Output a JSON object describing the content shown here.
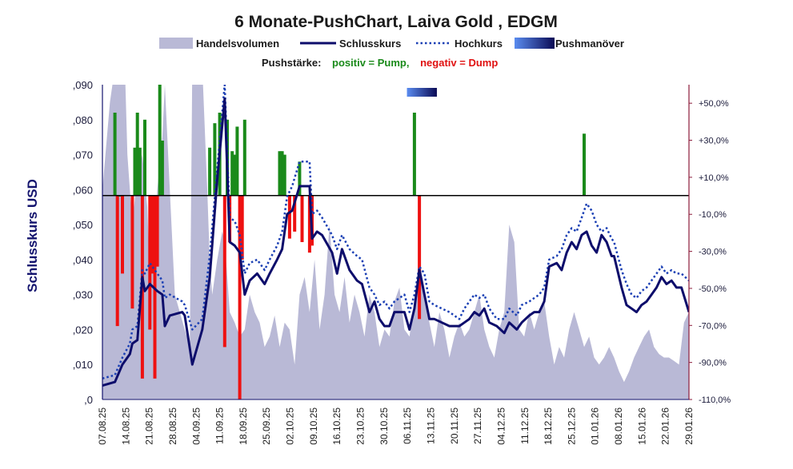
{
  "chart_data": {
    "type": "line",
    "title": "6 Monate-PushChart, Laiva Gold , EDGM",
    "ylabel": "Schlusskurs USD",
    "ylim": [
      0,
      0.09
    ],
    "y2lim": [
      -110,
      60
    ],
    "legend": {
      "volume": "Handelsvolumen",
      "close": "Schlusskurs",
      "high": "Hochkurs",
      "push": "Pushmanöver"
    },
    "pushstrength": {
      "label": "Pushstärke:",
      "positive": "positiv = Pump,",
      "negative": "negativ = Dump"
    },
    "y_ticks": [
      ",0",
      ",010",
      ",020",
      ",030",
      ",040",
      ",050",
      ",060",
      ",070",
      ",080",
      ",090"
    ],
    "y2_ticks": [
      "-110,0%",
      "-90,0%",
      "-70,0%",
      "-50,0%",
      "-30,0%",
      "-10,0%",
      "+10,0%",
      "+30,0%",
      "+50,0%"
    ],
    "y2_values": [
      -110,
      -90,
      -70,
      -50,
      -30,
      -10,
      10,
      30,
      50
    ],
    "x_labels": [
      "07.08.25",
      "14.08.25",
      "21.08.25",
      "28.08.25",
      "04.09.25",
      "11.09.25",
      "18.09.25",
      "25.09.25",
      "02.10.25",
      "09.10.25",
      "16.10.25",
      "23.10.25",
      "30.10.25",
      "06.11.25",
      "13.11.25",
      "20.11.25",
      "27.11.25",
      "04.12.25",
      "11.12.25",
      "18.12.25",
      "25.12.25",
      "01.01.26",
      "08.01.26",
      "15.01.26",
      "22.01.26",
      "29.01.26"
    ],
    "x_start": 0,
    "x_end": 175,
    "push_zero": 0.0583,
    "push_marker": {
      "from": 122,
      "to": 134
    },
    "close": [
      [
        0,
        0.004
      ],
      [
        5,
        0.005
      ],
      [
        8,
        0.01
      ],
      [
        11,
        0.013
      ],
      [
        12,
        0.016
      ],
      [
        14,
        0.017
      ],
      [
        16,
        0.035
      ],
      [
        17,
        0.031
      ],
      [
        19,
        0.033
      ],
      [
        22,
        0.031
      ],
      [
        24,
        0.03
      ],
      [
        25,
        0.021
      ],
      [
        27,
        0.024
      ],
      [
        32,
        0.025
      ],
      [
        33,
        0.024
      ],
      [
        36,
        0.01
      ],
      [
        40,
        0.02
      ],
      [
        43,
        0.035
      ],
      [
        46,
        0.063
      ],
      [
        49,
        0.086
      ],
      [
        51,
        0.045
      ],
      [
        53,
        0.044
      ],
      [
        55,
        0.042
      ],
      [
        57,
        0.03
      ],
      [
        59,
        0.034
      ],
      [
        62,
        0.036
      ],
      [
        65,
        0.033
      ],
      [
        67,
        0.036
      ],
      [
        70,
        0.04
      ],
      [
        72,
        0.043
      ],
      [
        74,
        0.053
      ],
      [
        76,
        0.054
      ],
      [
        79,
        0.061
      ],
      [
        83,
        0.061
      ],
      [
        84,
        0.046
      ],
      [
        86,
        0.048
      ],
      [
        88,
        0.047
      ],
      [
        92,
        0.042
      ],
      [
        94,
        0.036
      ],
      [
        96,
        0.043
      ],
      [
        99,
        0.037
      ],
      [
        102,
        0.034
      ],
      [
        104,
        0.033
      ],
      [
        107,
        0.025
      ],
      [
        109,
        0.028
      ],
      [
        111,
        0.023
      ],
      [
        113,
        0.021
      ],
      [
        115,
        0.021
      ],
      [
        117,
        0.025
      ],
      [
        121,
        0.025
      ],
      [
        123,
        0.02
      ],
      [
        125,
        0.026
      ],
      [
        127,
        0.037
      ],
      [
        129,
        0.03
      ],
      [
        131,
        0.023
      ],
      [
        133,
        0.023
      ],
      [
        136,
        0.022
      ],
      [
        139,
        0.021
      ],
      [
        143,
        0.021
      ],
      [
        145,
        0.022
      ],
      [
        147,
        0.023
      ],
      [
        149,
        0.025
      ],
      [
        151,
        0.024
      ],
      [
        153,
        0.026
      ],
      [
        155,
        0.022
      ],
      [
        158,
        0.021
      ],
      [
        161,
        0.019
      ],
      [
        163,
        0.022
      ],
      [
        166,
        0.02
      ],
      [
        168,
        0.022
      ],
      [
        171,
        0.024
      ],
      [
        173,
        0.025
      ],
      [
        175,
        0.025
      ],
      [
        177,
        0.028
      ],
      [
        179,
        0.038
      ],
      [
        182,
        0.039
      ],
      [
        184,
        0.037
      ],
      [
        186,
        0.042
      ],
      [
        188,
        0.045
      ],
      [
        190,
        0.043
      ],
      [
        192,
        0.047
      ],
      [
        194,
        0.048
      ],
      [
        196,
        0.044
      ],
      [
        198,
        0.042
      ],
      [
        200,
        0.047
      ],
      [
        202,
        0.045
      ],
      [
        204,
        0.041
      ],
      [
        205,
        0.041
      ],
      [
        208,
        0.032
      ],
      [
        210,
        0.027
      ],
      [
        212,
        0.026
      ],
      [
        214,
        0.025
      ],
      [
        216,
        0.027
      ],
      [
        218,
        0.028
      ],
      [
        220,
        0.03
      ],
      [
        222,
        0.032
      ],
      [
        224,
        0.035
      ],
      [
        226,
        0.033
      ],
      [
        228,
        0.034
      ],
      [
        230,
        0.032
      ],
      [
        232,
        0.032
      ],
      [
        235,
        0.025
      ]
    ],
    "high": [
      [
        0,
        0.006
      ],
      [
        5,
        0.007
      ],
      [
        8,
        0.012
      ],
      [
        11,
        0.016
      ],
      [
        12,
        0.02
      ],
      [
        14,
        0.021
      ],
      [
        16,
        0.037
      ],
      [
        17,
        0.036
      ],
      [
        19,
        0.039
      ],
      [
        22,
        0.036
      ],
      [
        24,
        0.034
      ],
      [
        25,
        0.029
      ],
      [
        27,
        0.03
      ],
      [
        32,
        0.028
      ],
      [
        33,
        0.027
      ],
      [
        36,
        0.02
      ],
      [
        40,
        0.023
      ],
      [
        43,
        0.041
      ],
      [
        46,
        0.066
      ],
      [
        49,
        0.09
      ],
      [
        51,
        0.052
      ],
      [
        53,
        0.051
      ],
      [
        55,
        0.047
      ],
      [
        57,
        0.036
      ],
      [
        59,
        0.039
      ],
      [
        62,
        0.04
      ],
      [
        65,
        0.037
      ],
      [
        67,
        0.04
      ],
      [
        70,
        0.044
      ],
      [
        72,
        0.048
      ],
      [
        74,
        0.058
      ],
      [
        76,
        0.061
      ],
      [
        79,
        0.068
      ],
      [
        83,
        0.068
      ],
      [
        84,
        0.053
      ],
      [
        86,
        0.054
      ],
      [
        88,
        0.052
      ],
      [
        92,
        0.047
      ],
      [
        94,
        0.043
      ],
      [
        96,
        0.047
      ],
      [
        99,
        0.043
      ],
      [
        102,
        0.041
      ],
      [
        104,
        0.04
      ],
      [
        107,
        0.032
      ],
      [
        109,
        0.03
      ],
      [
        111,
        0.027
      ],
      [
        113,
        0.028
      ],
      [
        115,
        0.026
      ],
      [
        117,
        0.028
      ],
      [
        121,
        0.03
      ],
      [
        123,
        0.025
      ],
      [
        125,
        0.03
      ],
      [
        127,
        0.038
      ],
      [
        129,
        0.036
      ],
      [
        131,
        0.028
      ],
      [
        133,
        0.027
      ],
      [
        136,
        0.026
      ],
      [
        139,
        0.025
      ],
      [
        143,
        0.023
      ],
      [
        145,
        0.026
      ],
      [
        147,
        0.028
      ],
      [
        149,
        0.03
      ],
      [
        151,
        0.029
      ],
      [
        153,
        0.03
      ],
      [
        155,
        0.026
      ],
      [
        158,
        0.023
      ],
      [
        161,
        0.023
      ],
      [
        163,
        0.026
      ],
      [
        166,
        0.024
      ],
      [
        168,
        0.027
      ],
      [
        171,
        0.028
      ],
      [
        173,
        0.029
      ],
      [
        175,
        0.03
      ],
      [
        177,
        0.032
      ],
      [
        179,
        0.04
      ],
      [
        182,
        0.041
      ],
      [
        184,
        0.043
      ],
      [
        186,
        0.047
      ],
      [
        188,
        0.049
      ],
      [
        190,
        0.048
      ],
      [
        192,
        0.052
      ],
      [
        194,
        0.056
      ],
      [
        196,
        0.054
      ],
      [
        198,
        0.05
      ],
      [
        200,
        0.048
      ],
      [
        202,
        0.049
      ],
      [
        204,
        0.046
      ],
      [
        205,
        0.045
      ],
      [
        208,
        0.037
      ],
      [
        210,
        0.033
      ],
      [
        212,
        0.03
      ],
      [
        214,
        0.029
      ],
      [
        216,
        0.031
      ],
      [
        218,
        0.032
      ],
      [
        220,
        0.034
      ],
      [
        222,
        0.036
      ],
      [
        224,
        0.038
      ],
      [
        226,
        0.036
      ],
      [
        228,
        0.037
      ],
      [
        230,
        0.036
      ],
      [
        232,
        0.036
      ],
      [
        235,
        0.034
      ]
    ],
    "volume": [
      [
        0,
        0.06
      ],
      [
        3,
        0.085
      ],
      [
        5,
        0.095
      ],
      [
        7,
        0.095
      ],
      [
        9,
        0.095
      ],
      [
        10,
        0.07
      ],
      [
        12,
        0.05
      ],
      [
        14,
        0.065
      ],
      [
        16,
        0.07
      ],
      [
        18,
        0.055
      ],
      [
        19,
        0.035
      ],
      [
        21,
        0.05
      ],
      [
        22,
        0.06
      ],
      [
        24,
        0.075
      ],
      [
        25,
        0.09
      ],
      [
        27,
        0.06
      ],
      [
        29,
        0.03
      ],
      [
        31,
        0.025
      ],
      [
        33,
        0.02
      ],
      [
        35,
        0.015
      ],
      [
        36,
        0.095
      ],
      [
        40,
        0.095
      ],
      [
        42,
        0.06
      ],
      [
        43,
        0.04
      ],
      [
        44,
        0.03
      ],
      [
        46,
        0.04
      ],
      [
        48,
        0.048
      ],
      [
        49,
        0.045
      ],
      [
        50,
        0.035
      ],
      [
        51,
        0.025
      ],
      [
        53,
        0.022
      ],
      [
        55,
        0.018
      ],
      [
        57,
        0.02
      ],
      [
        59,
        0.03
      ],
      [
        61,
        0.025
      ],
      [
        63,
        0.022
      ],
      [
        65,
        0.015
      ],
      [
        67,
        0.018
      ],
      [
        69,
        0.024
      ],
      [
        71,
        0.015
      ],
      [
        73,
        0.022
      ],
      [
        75,
        0.02
      ],
      [
        77,
        0.01
      ],
      [
        79,
        0.03
      ],
      [
        81,
        0.035
      ],
      [
        83,
        0.025
      ],
      [
        85,
        0.04
      ],
      [
        87,
        0.02
      ],
      [
        89,
        0.03
      ],
      [
        91,
        0.05
      ],
      [
        93,
        0.03
      ],
      [
        95,
        0.025
      ],
      [
        97,
        0.035
      ],
      [
        99,
        0.022
      ],
      [
        101,
        0.03
      ],
      [
        103,
        0.025
      ],
      [
        105,
        0.018
      ],
      [
        107,
        0.03
      ],
      [
        109,
        0.025
      ],
      [
        111,
        0.015
      ],
      [
        113,
        0.02
      ],
      [
        115,
        0.018
      ],
      [
        117,
        0.028
      ],
      [
        119,
        0.032
      ],
      [
        121,
        0.02
      ],
      [
        123,
        0.018
      ],
      [
        125,
        0.028
      ],
      [
        127,
        0.04
      ],
      [
        129,
        0.032
      ],
      [
        131,
        0.022
      ],
      [
        133,
        0.015
      ],
      [
        135,
        0.025
      ],
      [
        137,
        0.02
      ],
      [
        139,
        0.012
      ],
      [
        141,
        0.018
      ],
      [
        143,
        0.022
      ],
      [
        145,
        0.018
      ],
      [
        147,
        0.02
      ],
      [
        149,
        0.025
      ],
      [
        151,
        0.03
      ],
      [
        153,
        0.02
      ],
      [
        155,
        0.015
      ],
      [
        157,
        0.012
      ],
      [
        159,
        0.02
      ],
      [
        161,
        0.025
      ],
      [
        163,
        0.05
      ],
      [
        165,
        0.045
      ],
      [
        167,
        0.02
      ],
      [
        169,
        0.018
      ],
      [
        171,
        0.025
      ],
      [
        173,
        0.02
      ],
      [
        175,
        0.025
      ],
      [
        177,
        0.028
      ],
      [
        179,
        0.018
      ],
      [
        181,
        0.01
      ],
      [
        183,
        0.015
      ],
      [
        185,
        0.012
      ],
      [
        187,
        0.02
      ],
      [
        189,
        0.025
      ],
      [
        191,
        0.02
      ],
      [
        193,
        0.015
      ],
      [
        195,
        0.018
      ],
      [
        197,
        0.012
      ],
      [
        199,
        0.01
      ],
      [
        201,
        0.012
      ],
      [
        203,
        0.015
      ],
      [
        205,
        0.012
      ],
      [
        207,
        0.008
      ],
      [
        209,
        0.005
      ],
      [
        211,
        0.008
      ],
      [
        213,
        0.012
      ],
      [
        215,
        0.015
      ],
      [
        217,
        0.018
      ],
      [
        219,
        0.02
      ],
      [
        221,
        0.015
      ],
      [
        223,
        0.013
      ],
      [
        225,
        0.012
      ],
      [
        227,
        0.012
      ],
      [
        229,
        0.011
      ],
      [
        231,
        0.01
      ],
      [
        233,
        0.022
      ],
      [
        235,
        0.025
      ]
    ],
    "push_bars": [
      [
        5,
        0.082
      ],
      [
        6,
        -0.021
      ],
      [
        7,
        0.058
      ],
      [
        8,
        -0.036
      ],
      [
        12,
        -0.026
      ],
      [
        13,
        0.072
      ],
      [
        14,
        0.082
      ],
      [
        15,
        0.072
      ],
      [
        16,
        -0.006
      ],
      [
        17,
        0.08
      ],
      [
        19,
        -0.02
      ],
      [
        20,
        -0.036
      ],
      [
        21,
        -0.006
      ],
      [
        22,
        -0.038
      ],
      [
        23,
        0.09
      ],
      [
        24,
        0.074
      ],
      [
        43,
        0.072
      ],
      [
        45,
        0.079
      ],
      [
        47,
        0.082
      ],
      [
        49,
        -0.015
      ],
      [
        50,
        0.08
      ],
      [
        51,
        -0.045
      ],
      [
        52,
        0.071
      ],
      [
        53,
        0.07
      ],
      [
        54,
        0.078
      ],
      [
        55,
        -0.0
      ],
      [
        56,
        -0.04
      ],
      [
        57,
        0.08
      ],
      [
        71,
        0.071
      ],
      [
        72,
        0.071
      ],
      [
        73,
        0.07
      ],
      [
        75,
        -0.046
      ],
      [
        77,
        -0.048
      ],
      [
        79,
        0.068
      ],
      [
        80,
        -0.045
      ],
      [
        83,
        -0.042
      ],
      [
        84,
        -0.044
      ],
      [
        125,
        0.082
      ],
      [
        127,
        -0.023
      ],
      [
        193,
        0.076
      ]
    ]
  }
}
